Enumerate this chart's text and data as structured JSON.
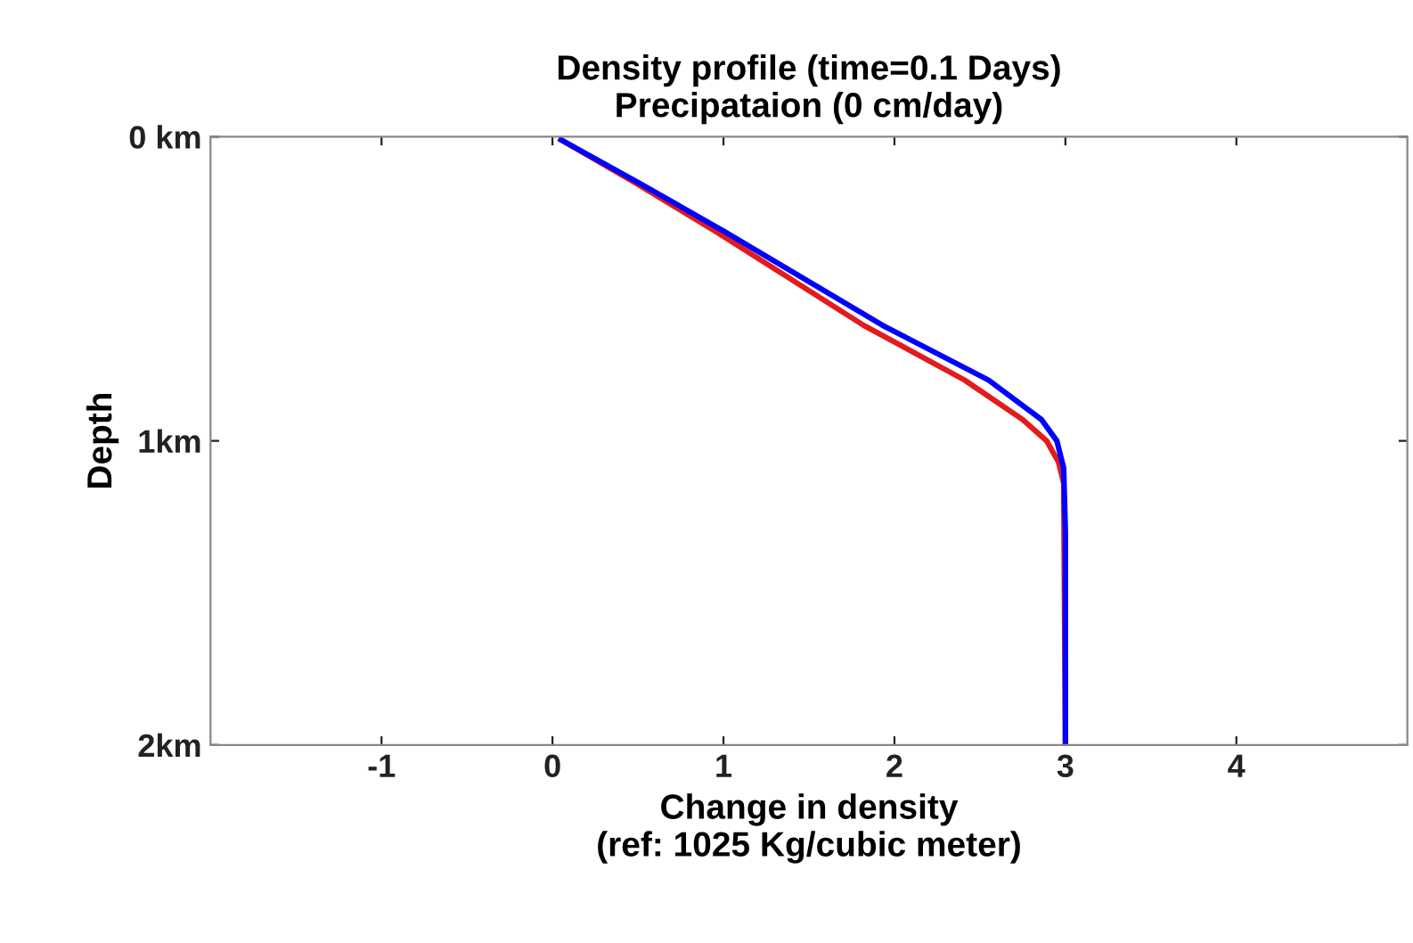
{
  "chart_data": {
    "type": "line",
    "title": "Density profile (time=0.1 Days)\nPrecipataion (0 cm/day)",
    "xlabel": "Change in density\n(ref: 1025 Kg/cubic meter)",
    "ylabel": "Depth",
    "xlim": [
      -2,
      5
    ],
    "xticks": [
      -1,
      0,
      1,
      2,
      3,
      4
    ],
    "ylim": [
      2,
      0
    ],
    "yticks": [
      {
        "value": 0,
        "label": "0 km"
      },
      {
        "value": 1,
        "label": "1km"
      },
      {
        "value": 2,
        "label": "2km"
      }
    ],
    "grid": false,
    "legend": false,
    "series": [
      {
        "color": "#e41a1c",
        "x": [
          0.05,
          0.48,
          0.95,
          1.82,
          2.41,
          2.75,
          2.89,
          2.96,
          2.99,
          3.0
        ],
        "values": [
          0.01,
          0.15,
          0.31,
          0.62,
          0.8,
          0.93,
          1.0,
          1.07,
          1.14,
          2.0
        ]
      },
      {
        "color": "#0000ff",
        "x": [
          0.05,
          0.5,
          1.0,
          1.93,
          2.55,
          2.86,
          2.95,
          2.99,
          3.0,
          3.0
        ],
        "values": [
          0.01,
          0.15,
          0.31,
          0.62,
          0.8,
          0.93,
          1.0,
          1.09,
          1.3,
          2.0
        ]
      }
    ]
  }
}
